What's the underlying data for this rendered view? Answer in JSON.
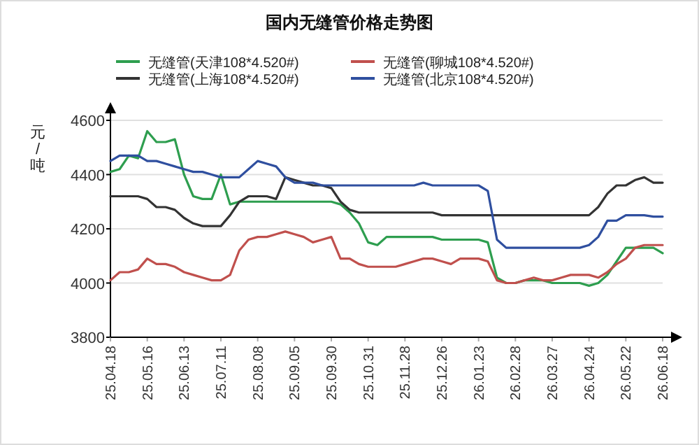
{
  "chart_data": {
    "type": "line",
    "title": "国内无缝管价格走势图",
    "ylabel": "元/吨",
    "categories": [
      "25.04.18",
      null,
      null,
      null,
      "25.05.16",
      null,
      null,
      null,
      "25.06.13",
      null,
      null,
      null,
      "25.07.11",
      null,
      null,
      null,
      "25.08.08",
      null,
      null,
      null,
      "25.09.05",
      null,
      null,
      null,
      "25.09.30",
      null,
      null,
      null,
      "25.10.31",
      null,
      null,
      null,
      "25.11.28",
      null,
      null,
      null,
      "25.12.26",
      null,
      null,
      null,
      "26.01.23",
      null,
      null,
      null,
      "26.02.28",
      null,
      null,
      null,
      "26.03.27",
      null,
      null,
      null,
      "26.04.24",
      null,
      null,
      null,
      "26.05.22",
      null,
      null,
      null,
      "26.06.18"
    ],
    "series": [
      {
        "name": "无缝管(天津108*4.520#)",
        "color": "#2e9e4f",
        "values": [
          4410,
          4420,
          4470,
          4460,
          4560,
          4520,
          4520,
          4530,
          4400,
          4320,
          4310,
          4310,
          4400,
          4290,
          4300,
          4300,
          4300,
          4300,
          4300,
          4300,
          4300,
          4300,
          4300,
          4300,
          4300,
          4290,
          4260,
          4220,
          4150,
          4140,
          4170,
          4170,
          4170,
          4170,
          4170,
          4170,
          4160,
          4160,
          4160,
          4160,
          4160,
          4150,
          4020,
          4000,
          4000,
          4010,
          4010,
          4010,
          4000,
          4000,
          4000,
          4000,
          3990,
          4000,
          4030,
          4080,
          4130,
          4130,
          4130,
          4130,
          4110
        ]
      },
      {
        "name": "无缝管(聊城108*4.520#)",
        "color": "#c0504d",
        "values": [
          4010,
          4040,
          4040,
          4050,
          4090,
          4070,
          4070,
          4060,
          4040,
          4030,
          4020,
          4010,
          4010,
          4030,
          4120,
          4160,
          4170,
          4170,
          4180,
          4190,
          4180,
          4170,
          4150,
          4160,
          4170,
          4090,
          4090,
          4070,
          4060,
          4060,
          4060,
          4060,
          4070,
          4080,
          4090,
          4090,
          4080,
          4070,
          4090,
          4090,
          4090,
          4080,
          4010,
          4000,
          4000,
          4010,
          4020,
          4010,
          4010,
          4020,
          4030,
          4030,
          4030,
          4020,
          4040,
          4070,
          4090,
          4130,
          4140,
          4140,
          4140
        ]
      },
      {
        "name": "无缝管(上海108*4.520#)",
        "color": "#333333",
        "values": [
          4320,
          4320,
          4320,
          4320,
          4310,
          4280,
          4280,
          4270,
          4240,
          4220,
          4210,
          4210,
          4210,
          4250,
          4300,
          4320,
          4320,
          4320,
          4310,
          4390,
          4380,
          4370,
          4360,
          4360,
          4350,
          4300,
          4270,
          4260,
          4260,
          4260,
          4260,
          4260,
          4260,
          4260,
          4260,
          4260,
          4250,
          4250,
          4250,
          4250,
          4250,
          4250,
          4250,
          4250,
          4250,
          4250,
          4250,
          4250,
          4250,
          4250,
          4250,
          4250,
          4250,
          4280,
          4330,
          4360,
          4360,
          4380,
          4390,
          4370,
          4370
        ]
      },
      {
        "name": "无缝管(北京108*4.520#)",
        "color": "#2f4f9f",
        "values": [
          4450,
          4470,
          4470,
          4470,
          4450,
          4450,
          4440,
          4430,
          4420,
          4410,
          4410,
          4400,
          4390,
          4390,
          4390,
          4420,
          4450,
          4440,
          4430,
          4390,
          4370,
          4370,
          4370,
          4360,
          4360,
          4360,
          4360,
          4360,
          4360,
          4360,
          4360,
          4360,
          4360,
          4360,
          4370,
          4360,
          4360,
          4360,
          4360,
          4360,
          4360,
          4340,
          4160,
          4130,
          4130,
          4130,
          4130,
          4130,
          4130,
          4130,
          4130,
          4130,
          4140,
          4170,
          4230,
          4230,
          4250,
          4250,
          4250,
          4245,
          4245
        ]
      }
    ],
    "ylim": [
      3800,
      4600
    ],
    "yticks": [
      3800,
      4000,
      4200,
      4400,
      4600
    ],
    "grid": "y",
    "legend": "top",
    "marker": "none",
    "line_style": "solid"
  }
}
